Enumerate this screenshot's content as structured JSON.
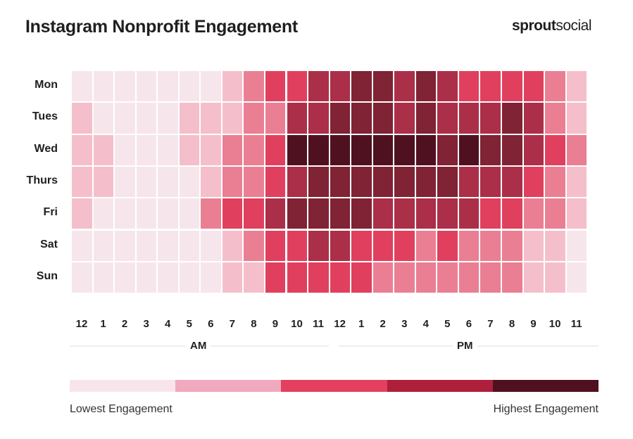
{
  "title": "Instagram Nonprofit Engagement",
  "logo": {
    "bold": "sprout",
    "regular": "social"
  },
  "chart_data": {
    "type": "heatmap",
    "title": "Instagram Nonprofit Engagement",
    "rows": [
      "Mon",
      "Tues",
      "Wed",
      "Thurs",
      "Fri",
      "Sat",
      "Sun"
    ],
    "columns": [
      "12",
      "1",
      "2",
      "3",
      "4",
      "5",
      "6",
      "7",
      "8",
      "9",
      "10",
      "11",
      "12",
      "1",
      "2",
      "3",
      "4",
      "5",
      "6",
      "7",
      "8",
      "9",
      "10",
      "11"
    ],
    "column_groups": [
      {
        "label": "AM",
        "span": 12
      },
      {
        "label": "PM",
        "span": 12
      }
    ],
    "level_scale": "0 = lowest engagement, 6 = highest engagement",
    "values": [
      [
        0,
        0,
        0,
        0,
        0,
        0,
        0,
        1,
        2,
        3,
        3,
        4,
        4,
        5,
        5,
        4,
        5,
        4,
        3,
        3,
        3,
        3,
        2,
        1
      ],
      [
        1,
        0,
        0,
        0,
        0,
        1,
        1,
        1,
        2,
        2,
        4,
        4,
        5,
        5,
        5,
        4,
        5,
        4,
        4,
        4,
        5,
        4,
        2,
        1
      ],
      [
        1,
        1,
        0,
        0,
        0,
        1,
        1,
        2,
        2,
        3,
        6,
        6,
        6,
        6,
        6,
        6,
        6,
        5,
        6,
        5,
        5,
        4,
        3,
        2
      ],
      [
        1,
        1,
        0,
        0,
        0,
        0,
        1,
        2,
        2,
        3,
        4,
        5,
        5,
        5,
        5,
        5,
        5,
        5,
        4,
        4,
        4,
        3,
        2,
        1
      ],
      [
        1,
        0,
        0,
        0,
        0,
        0,
        2,
        3,
        3,
        4,
        5,
        5,
        5,
        5,
        4,
        4,
        4,
        4,
        4,
        3,
        3,
        2,
        2,
        1
      ],
      [
        0,
        0,
        0,
        0,
        0,
        0,
        0,
        1,
        2,
        3,
        3,
        4,
        4,
        3,
        3,
        3,
        2,
        3,
        2,
        2,
        2,
        1,
        1,
        0
      ],
      [
        0,
        0,
        0,
        0,
        0,
        0,
        0,
        1,
        1,
        3,
        3,
        3,
        3,
        3,
        2,
        2,
        2,
        2,
        2,
        2,
        2,
        1,
        1,
        0
      ]
    ],
    "cell_colors": [
      "#f6e6eb",
      "#f4bfca",
      "#ea7f93",
      "#e0405e",
      "#ab2f48",
      "#7f2335",
      "#4f1120"
    ],
    "legend": {
      "low_label": "Lowest Engagement",
      "high_label": "Highest Engagement",
      "colors": [
        "#f7e5eb",
        "#f0a9be",
        "#e2405e",
        "#ae1f3c",
        "#4f1120"
      ],
      "placement": "bottom"
    }
  }
}
